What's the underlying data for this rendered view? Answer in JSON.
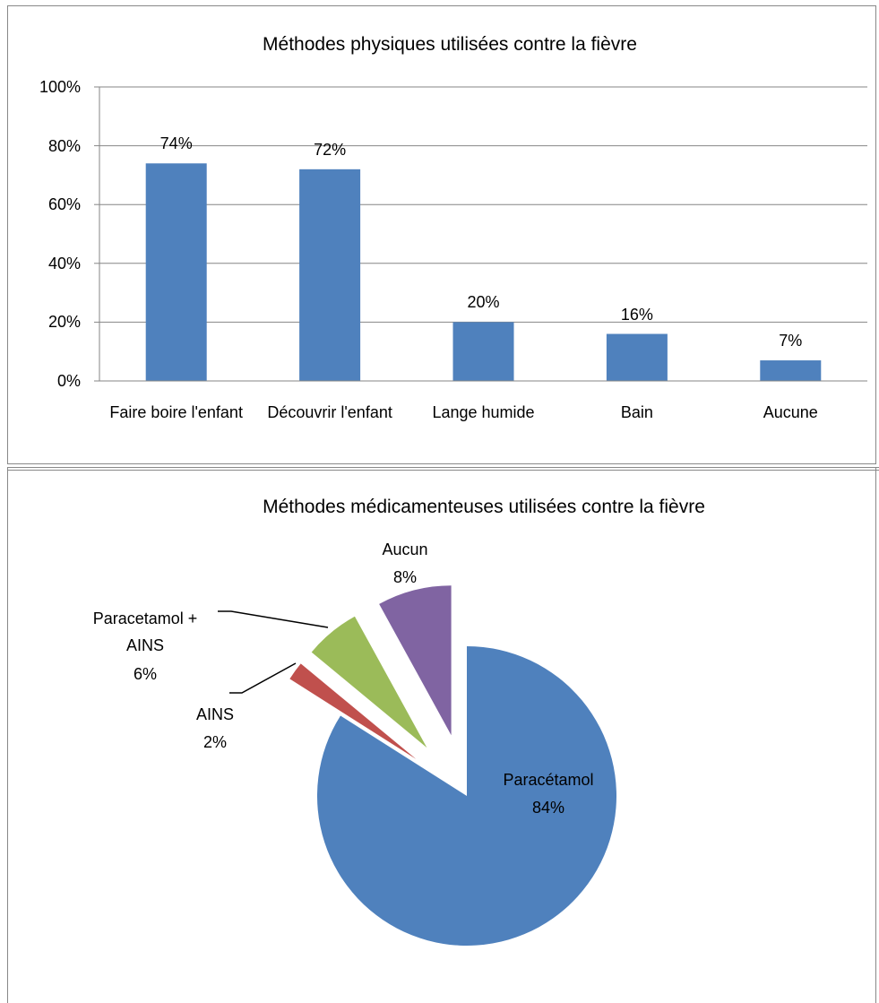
{
  "chart_data": [
    {
      "type": "bar",
      "title": "Méthodes physiques utilisées contre la fièvre",
      "categories": [
        "Faire boire l'enfant",
        "Découvrir l'enfant",
        "Lange humide",
        "Bain",
        "Aucune"
      ],
      "values": [
        74,
        72,
        20,
        16,
        7
      ],
      "value_labels": [
        "74%",
        "72%",
        "20%",
        "16%",
        "7%"
      ],
      "color": "#4f81bd",
      "ylim": [
        0,
        100
      ],
      "yticks": [
        {
          "value": 0,
          "label": "0%"
        },
        {
          "value": 20,
          "label": "20%"
        },
        {
          "value": 40,
          "label": "40%"
        },
        {
          "value": 60,
          "label": "60%"
        },
        {
          "value": 80,
          "label": "80%"
        },
        {
          "value": 100,
          "label": "100%"
        }
      ],
      "grid": true
    },
    {
      "type": "pie",
      "title": "Méthodes médicamenteuses utilisées contre la fièvre",
      "categories": [
        "Paracétamol",
        "AINS",
        "Paracetamol + AINS",
        "Aucun"
      ],
      "values": [
        84,
        2,
        6,
        8
      ],
      "value_labels": [
        "84%",
        "2%",
        "6%",
        "8%"
      ],
      "colors": [
        "#4f81bd",
        "#c0504d",
        "#9bbb59",
        "#8064a2"
      ]
    }
  ]
}
